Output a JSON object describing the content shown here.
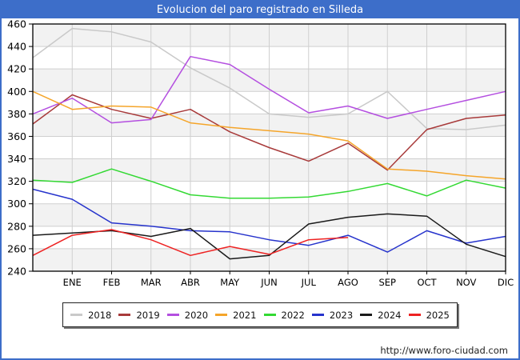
{
  "window": {
    "title": "Evolucion del paro registrado en Silleda"
  },
  "footer": {
    "url": "http://www.foro-ciudad.com"
  },
  "colors": {
    "frame_blue": "#3d6ec9",
    "title_text": "#ffffff",
    "grid": "#cfcfcf",
    "band": "#f2f2f2",
    "plot_border": "#000000",
    "axis_text": "#000000"
  },
  "chart_data": {
    "type": "line",
    "title": "Evolucion del paro registrado en Silleda",
    "categories": [
      "ENE",
      "FEB",
      "MAR",
      "ABR",
      "MAY",
      "JUN",
      "JUL",
      "AGO",
      "SEP",
      "OCT",
      "NOV",
      "DIC"
    ],
    "x_layout_note": "each series has 13 points: first point sits on the left axis (pre-January), remaining 12 fall on the month ticks; 2025 stops at AGO",
    "ylim": [
      240,
      460
    ],
    "ytick_step": 20,
    "grid": true,
    "legend_position": "bottom",
    "series": [
      {
        "name": "2018",
        "color": "#c9c9c9",
        "values": [
          430,
          456,
          453,
          444,
          421,
          403,
          380,
          377,
          380,
          400,
          367,
          366,
          370
        ]
      },
      {
        "name": "2019",
        "color": "#a83a3a",
        "values": [
          371,
          397,
          384,
          376,
          384,
          364,
          350,
          338,
          354,
          330,
          366,
          376,
          379
        ]
      },
      {
        "name": "2020",
        "color": "#b44fe0",
        "values": [
          380,
          394,
          372,
          375,
          431,
          424,
          402,
          381,
          387,
          376,
          384,
          392,
          400
        ]
      },
      {
        "name": "2021",
        "color": "#f5a52a",
        "values": [
          400,
          384,
          387,
          386,
          372,
          368,
          365,
          362,
          356,
          331,
          329,
          325,
          322
        ]
      },
      {
        "name": "2022",
        "color": "#33d933",
        "values": [
          321,
          319,
          331,
          320,
          308,
          305,
          305,
          306,
          311,
          318,
          307,
          321,
          314
        ]
      },
      {
        "name": "2023",
        "color": "#2633cc",
        "values": [
          313,
          304,
          283,
          280,
          276,
          275,
          268,
          263,
          272,
          257,
          276,
          265,
          271
        ]
      },
      {
        "name": "2024",
        "color": "#1a1a1a",
        "values": [
          272,
          274,
          276,
          271,
          278,
          251,
          254,
          282,
          288,
          291,
          289,
          264,
          253
        ]
      },
      {
        "name": "2025",
        "color": "#ee2222",
        "values": [
          254,
          272,
          277,
          268,
          254,
          262,
          255,
          268,
          270
        ]
      }
    ]
  }
}
